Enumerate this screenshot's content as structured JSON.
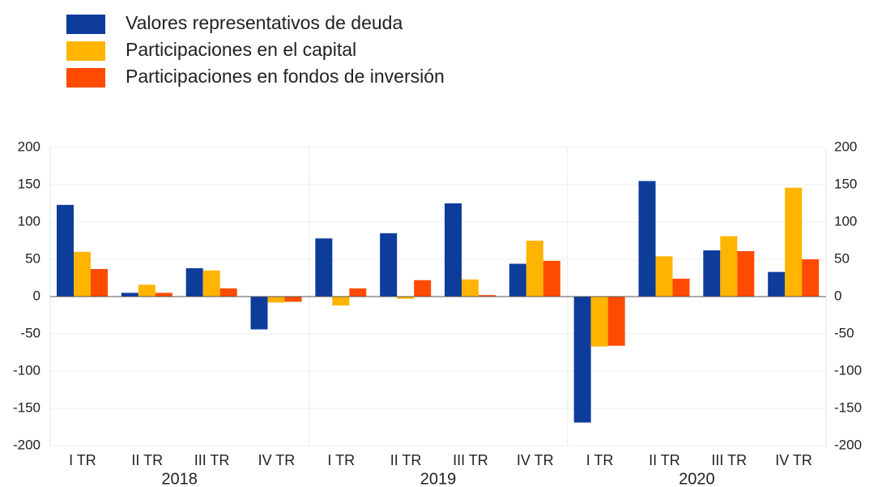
{
  "chart_data": {
    "type": "bar",
    "categories": [
      "I TR",
      "II TR",
      "III TR",
      "IV TR",
      "I TR",
      "II TR",
      "III TR",
      "IV TR",
      "I TR",
      "II TR",
      "III TR",
      "IV TR"
    ],
    "category_groups": [
      "2018",
      "2019",
      "2020"
    ],
    "series": [
      {
        "name": "Valores representativos de deuda",
        "color": "#0d3c9b",
        "values": [
          123,
          5,
          38,
          -44,
          78,
          85,
          125,
          44,
          -169,
          155,
          62,
          33
        ]
      },
      {
        "name": "Participaciones en el capital",
        "color": "#ffb400",
        "values": [
          60,
          16,
          35,
          -8,
          -12,
          -3,
          23,
          75,
          -67,
          54,
          81,
          146
        ]
      },
      {
        "name": "Participaciones en fondos de inversión",
        "color": "#ff4b00",
        "values": [
          37,
          5,
          11,
          -7,
          11,
          22,
          2,
          48,
          -66,
          24,
          61,
          50
        ]
      }
    ],
    "ylim": [
      -200,
      200
    ],
    "yticks": [
      -200,
      -150,
      -100,
      -50,
      0,
      50,
      100,
      150,
      200
    ],
    "grid": true,
    "legend": "top-left"
  }
}
